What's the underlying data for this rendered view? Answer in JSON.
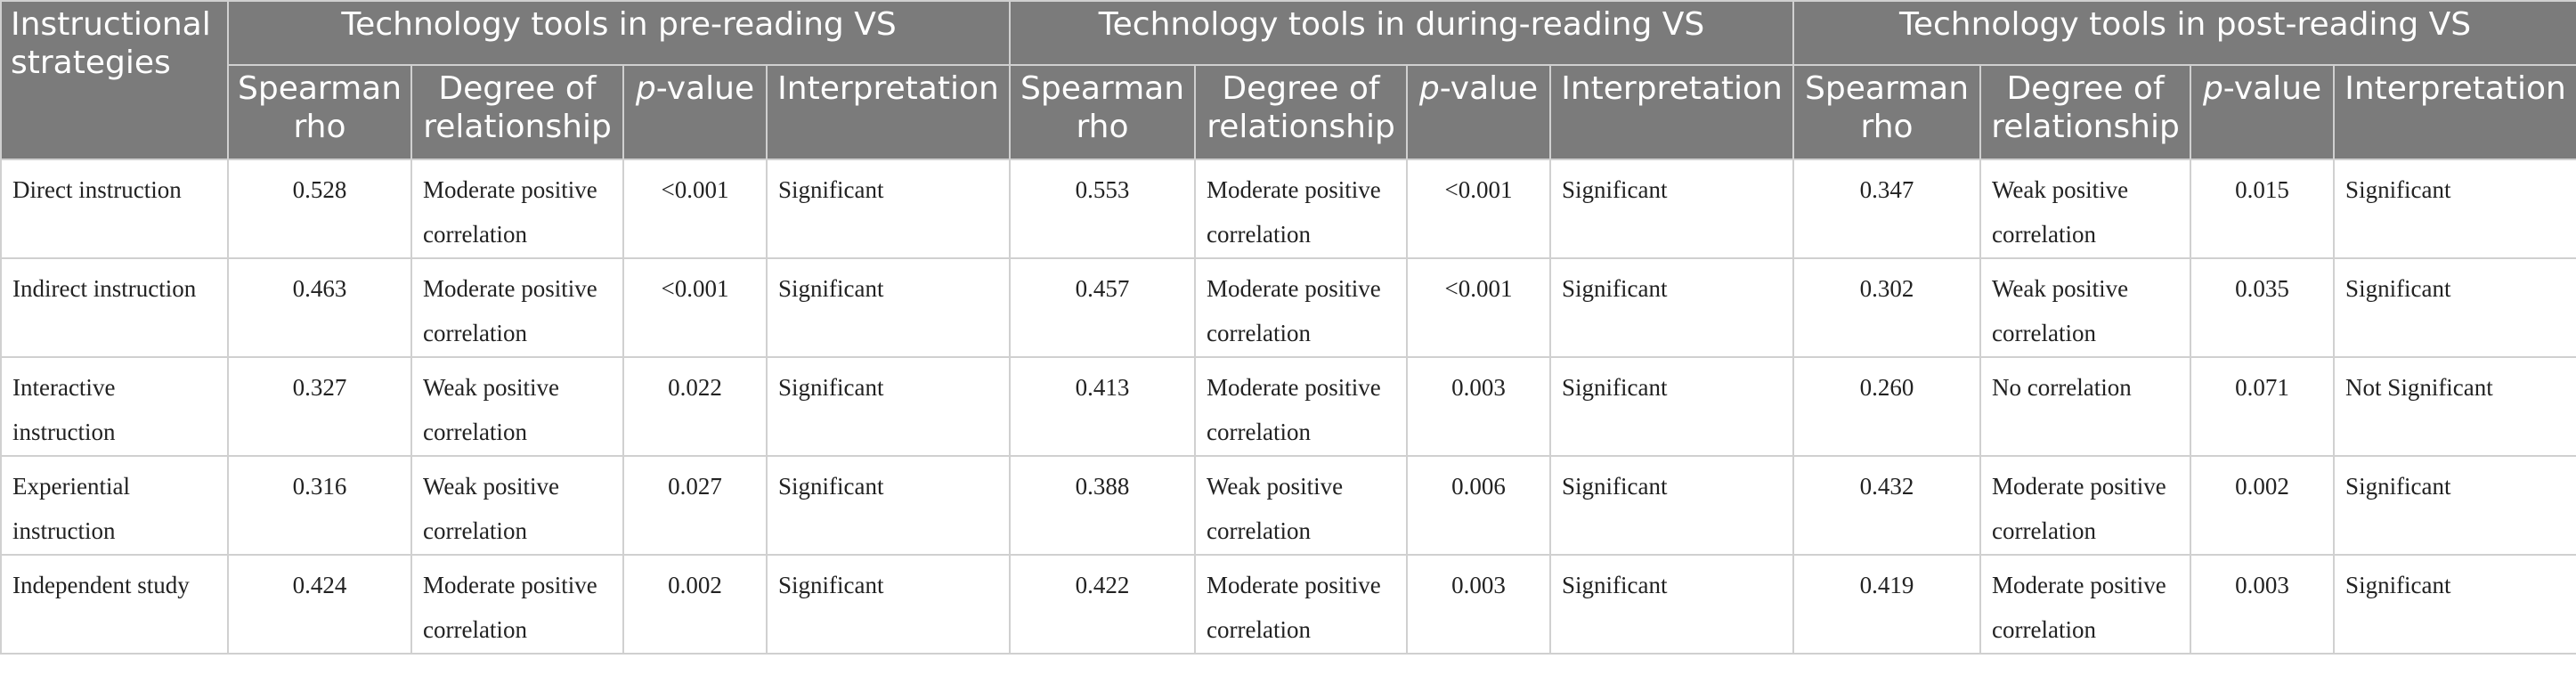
{
  "header": {
    "corner": "Instructional strategies",
    "groups": [
      "Technology tools in pre-reading VS",
      "Technology tools in during-reading VS",
      "Technology tools in post-reading VS"
    ],
    "subcolumns": [
      "Spearman rho",
      "Degree of relationship",
      {
        "italic": "p",
        "rest": "-value"
      },
      "Interpretation"
    ]
  },
  "table": {
    "rows": [
      [
        "Direct instruction",
        "0.528",
        "Moderate positive correlation",
        "<0.001",
        "Significant",
        "0.553",
        "Moderate positive correlation",
        "<0.001",
        "Significant",
        "0.347",
        "Weak positive correlation",
        "0.015",
        "Significant"
      ],
      [
        "Indirect instruction",
        "0.463",
        "Moderate positive correlation",
        "<0.001",
        "Significant",
        "0.457",
        "Moderate positive correlation",
        "<0.001",
        "Significant",
        "0.302",
        "Weak positive correlation",
        "0.035",
        "Significant"
      ],
      [
        "Interactive instruction",
        "0.327",
        "Weak positive correlation",
        "0.022",
        "Significant",
        "0.413",
        "Moderate positive correlation",
        "0.003",
        "Significant",
        "0.260",
        "No correlation",
        "0.071",
        "Not Significant"
      ],
      [
        "Experiential instruction",
        "0.316",
        "Weak positive correlation",
        "0.027",
        "Significant",
        "0.388",
        "Weak positive correlation",
        "0.006",
        "Significant",
        "0.432",
        "Moderate positive correlation",
        "0.002",
        "Significant"
      ],
      [
        "Independent study",
        "0.424",
        "Moderate positive correlation",
        "0.002",
        "Significant",
        "0.422",
        "Moderate positive correlation",
        "0.003",
        "Significant",
        "0.419",
        "Moderate positive correlation",
        "0.003",
        "Significant"
      ]
    ]
  }
}
